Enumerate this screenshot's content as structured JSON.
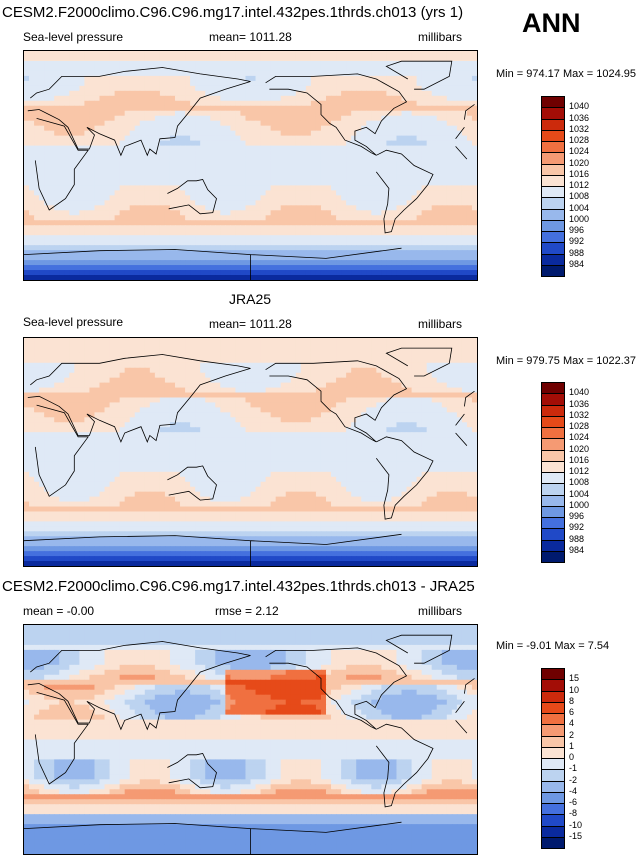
{
  "season": "ANN",
  "chart_data": [
    {
      "type": "heatmap",
      "title": "CESM2.F2000climo.C96.C96.mg17.intel.432pes.1thrds.ch013 (yrs 1)",
      "left_label": "Sea-level pressure",
      "center_label": "mean= 1011.28",
      "right_label": "millibars",
      "minmax": "Min = 974.17 Max = 1024.95",
      "levels": [
        "1040",
        "1036",
        "1032",
        "1028",
        "1024",
        "1020",
        "1016",
        "1012",
        "1008",
        "1004",
        "1000",
        "996",
        "992",
        "988",
        "984"
      ],
      "colors": [
        "#6f0000",
        "#a30d06",
        "#cc2a0c",
        "#e64a19",
        "#f07040",
        "#f59a73",
        "#f9c6a8",
        "#fbe3d3",
        "#dfe9f6",
        "#bcd3f0",
        "#98b8ec",
        "#6e98e3",
        "#4470de",
        "#2049c7",
        "#0a2a9e",
        "#001a6e"
      ],
      "field": {
        "zmean": [
          985,
          998,
          1010,
          1017,
          1013,
          1011,
          1010,
          1011,
          1013,
          1017,
          1012,
          1011,
          1013
        ]
      }
    },
    {
      "type": "heatmap",
      "title": "JRA25",
      "left_label": "Sea-level pressure",
      "center_label": "mean= 1011.28",
      "right_label": "millibars",
      "minmax": "Min = 979.75 Max = 1022.37",
      "levels": [
        "1040",
        "1036",
        "1032",
        "1028",
        "1024",
        "1020",
        "1016",
        "1012",
        "1008",
        "1004",
        "1000",
        "996",
        "992",
        "988",
        "984"
      ],
      "colors": [
        "#6f0000",
        "#a30d06",
        "#cc2a0c",
        "#e64a19",
        "#f07040",
        "#f59a73",
        "#f9c6a8",
        "#fbe3d3",
        "#dfe9f6",
        "#bcd3f0",
        "#98b8ec",
        "#6e98e3",
        "#4470de",
        "#2049c7",
        "#0a2a9e",
        "#001a6e"
      ],
      "field": {
        "zmean": [
          986,
          999,
          1010,
          1016,
          1013,
          1011,
          1010,
          1011,
          1013,
          1016,
          1013,
          1012,
          1014
        ]
      }
    },
    {
      "type": "heatmap",
      "title": "CESM2.F2000climo.C96.C96.mg17.intel.432pes.1thrds.ch013 - JRA25",
      "left_label": "mean =  -0.00",
      "center_label": "rmse =   2.12",
      "right_label": "millibars",
      "minmax": "Min =  -9.01 Max =   7.54",
      "levels": [
        "15",
        "10",
        "8",
        "6",
        "4",
        "2",
        "1",
        "0",
        "-1",
        "-2",
        "-4",
        "-6",
        "-8",
        "-10",
        "-15"
      ],
      "colors": [
        "#6f0000",
        "#a30d06",
        "#cc2a0c",
        "#e64a19",
        "#f07040",
        "#f59a73",
        "#f9c6a8",
        "#fbe3d3",
        "#dfe9f6",
        "#bcd3f0",
        "#98b8ec",
        "#6e98e3",
        "#4470de",
        "#2049c7",
        "#0a2a9e",
        "#001a6e"
      ],
      "field": {
        "zmean": [
          -2,
          -2,
          0,
          2,
          -1,
          -1,
          0,
          0,
          -1,
          1,
          -1,
          -1,
          -2
        ]
      }
    }
  ]
}
